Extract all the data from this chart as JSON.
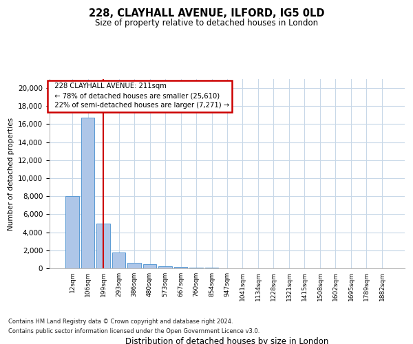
{
  "title1": "228, CLAYHALL AVENUE, ILFORD, IG5 0LD",
  "title2": "Size of property relative to detached houses in London",
  "xlabel": "Distribution of detached houses by size in London",
  "ylabel": "Number of detached properties",
  "categories": [
    "12sqm",
    "106sqm",
    "199sqm",
    "293sqm",
    "386sqm",
    "480sqm",
    "573sqm",
    "667sqm",
    "760sqm",
    "854sqm",
    "947sqm",
    "1041sqm",
    "1134sqm",
    "1228sqm",
    "1321sqm",
    "1415sqm",
    "1508sqm",
    "1602sqm",
    "1695sqm",
    "1789sqm",
    "1882sqm"
  ],
  "values": [
    8050,
    16700,
    5000,
    1750,
    580,
    430,
    250,
    190,
    100,
    70,
    30,
    0,
    0,
    0,
    0,
    0,
    0,
    0,
    0,
    0,
    0
  ],
  "bar_color": "#aec6e8",
  "bar_edge_color": "#5b9bd5",
  "property_label": "228 CLAYHALL AVENUE: 211sqm",
  "pct_smaller": 78,
  "count_smaller": "25,610",
  "pct_larger": 22,
  "count_larger": "7,271",
  "vline_bin_index": 2,
  "annotation_box_edge": "#cc0000",
  "vline_color": "#cc0000",
  "background_color": "#ffffff",
  "grid_color": "#c8d8e8",
  "ylim": [
    0,
    21000
  ],
  "yticks": [
    0,
    2000,
    4000,
    6000,
    8000,
    10000,
    12000,
    14000,
    16000,
    18000,
    20000
  ],
  "footnote1": "Contains HM Land Registry data © Crown copyright and database right 2024.",
  "footnote2": "Contains public sector information licensed under the Open Government Licence v3.0."
}
